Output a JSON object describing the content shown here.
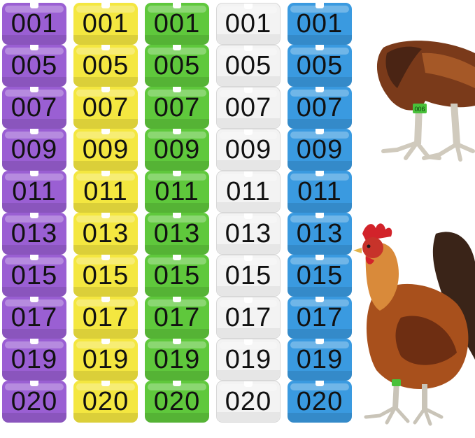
{
  "product": {
    "ring_numbers": [
      "001",
      "005",
      "007",
      "009",
      "011",
      "013",
      "015",
      "017",
      "019",
      "020"
    ],
    "columns": [
      {
        "color_name": "purple",
        "fill": "#9a5fd3"
      },
      {
        "color_name": "yellow",
        "fill": "#f4e740"
      },
      {
        "color_name": "green",
        "fill": "#5fc83c"
      },
      {
        "color_name": "white",
        "fill": "#f3f3f3"
      },
      {
        "color_name": "blue",
        "fill": "#3a9ae0"
      }
    ],
    "leg_band_label": "006"
  },
  "colors": {
    "rooster_body": "#b5561c",
    "rooster_neck": "#d98a3a",
    "rooster_comb": "#d2232a",
    "tail": "#3a2418",
    "leg": "#c9c4b8"
  }
}
